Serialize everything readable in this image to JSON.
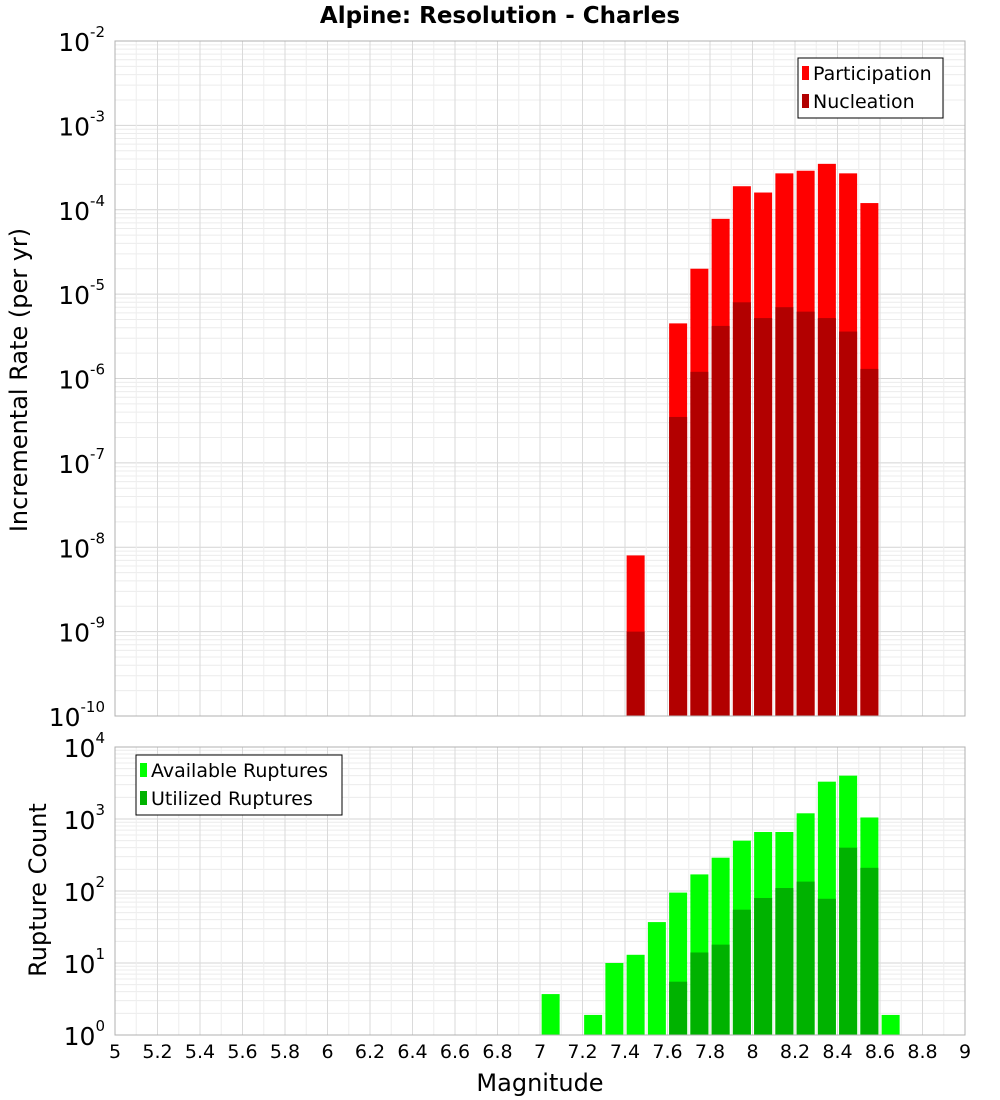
{
  "chart_data": [
    {
      "type": "bar",
      "panel": "top",
      "title": "Alpine: Resolution - Charles",
      "xlabel": "Magnitude",
      "ylabel": "Incremental Rate (per yr)",
      "yscale": "log",
      "ylim_exponents": [
        -10,
        -2
      ],
      "xlim": [
        5,
        9
      ],
      "grid": true,
      "legend_position": "top-right",
      "series": [
        {
          "name": "Participation",
          "color": "#ff0000",
          "points": [
            {
              "x": 7.45,
              "y": 8e-09
            },
            {
              "x": 7.65,
              "y": 4.5e-06
            },
            {
              "x": 7.75,
              "y": 2e-05
            },
            {
              "x": 7.85,
              "y": 7.8e-05
            },
            {
              "x": 7.95,
              "y": 0.00019
            },
            {
              "x": 8.05,
              "y": 0.00016
            },
            {
              "x": 8.15,
              "y": 0.00027
            },
            {
              "x": 8.25,
              "y": 0.00029
            },
            {
              "x": 8.35,
              "y": 0.00035
            },
            {
              "x": 8.45,
              "y": 0.00027
            },
            {
              "x": 8.55,
              "y": 0.00012
            }
          ]
        },
        {
          "name": "Nucleation",
          "color": "#b20000",
          "points": [
            {
              "x": 7.45,
              "y": 1e-09
            },
            {
              "x": 7.65,
              "y": 3.5e-07
            },
            {
              "x": 7.75,
              "y": 1.2e-06
            },
            {
              "x": 7.85,
              "y": 4.2e-06
            },
            {
              "x": 7.95,
              "y": 8e-06
            },
            {
              "x": 8.05,
              "y": 5.2e-06
            },
            {
              "x": 8.15,
              "y": 7e-06
            },
            {
              "x": 8.25,
              "y": 6.2e-06
            },
            {
              "x": 8.35,
              "y": 5.2e-06
            },
            {
              "x": 8.45,
              "y": 3.6e-06
            },
            {
              "x": 8.55,
              "y": 1.3e-06
            }
          ]
        }
      ]
    },
    {
      "type": "bar",
      "panel": "bottom",
      "xlabel": "Magnitude",
      "ylabel": "Rupture Count",
      "yscale": "log",
      "ylim_exponents": [
        0,
        4
      ],
      "xlim": [
        5,
        9
      ],
      "xticks": [
        "5",
        "5.2",
        "5.4",
        "5.6",
        "5.8",
        "6",
        "6.2",
        "6.4",
        "6.6",
        "6.8",
        "7",
        "7.2",
        "7.4",
        "7.6",
        "7.8",
        "8",
        "8.2",
        "8.4",
        "8.6",
        "8.8",
        "9"
      ],
      "grid": true,
      "legend_position": "top-left",
      "series": [
        {
          "name": "Available Ruptures",
          "color": "#00ff00",
          "points": [
            {
              "x": 6.55,
              "y": 1
            },
            {
              "x": 7.05,
              "y": 3.7
            },
            {
              "x": 7.15,
              "y": 1
            },
            {
              "x": 7.25,
              "y": 1.9
            },
            {
              "x": 7.35,
              "y": 10
            },
            {
              "x": 7.45,
              "y": 13
            },
            {
              "x": 7.55,
              "y": 37
            },
            {
              "x": 7.65,
              "y": 95
            },
            {
              "x": 7.75,
              "y": 170
            },
            {
              "x": 7.85,
              "y": 290
            },
            {
              "x": 7.95,
              "y": 500
            },
            {
              "x": 8.05,
              "y": 660
            },
            {
              "x": 8.15,
              "y": 660
            },
            {
              "x": 8.25,
              "y": 1200
            },
            {
              "x": 8.35,
              "y": 3300
            },
            {
              "x": 8.45,
              "y": 4000
            },
            {
              "x": 8.55,
              "y": 1050
            },
            {
              "x": 8.65,
              "y": 1.9
            }
          ]
        },
        {
          "name": "Utilized Ruptures",
          "color": "#00b200",
          "points": [
            {
              "x": 7.45,
              "y": 1
            },
            {
              "x": 7.65,
              "y": 5.5
            },
            {
              "x": 7.75,
              "y": 14
            },
            {
              "x": 7.85,
              "y": 18
            },
            {
              "x": 7.95,
              "y": 55
            },
            {
              "x": 8.05,
              "y": 80
            },
            {
              "x": 8.15,
              "y": 110
            },
            {
              "x": 8.25,
              "y": 135
            },
            {
              "x": 8.35,
              "y": 78
            },
            {
              "x": 8.45,
              "y": 400
            },
            {
              "x": 8.55,
              "y": 210
            }
          ]
        }
      ]
    }
  ]
}
